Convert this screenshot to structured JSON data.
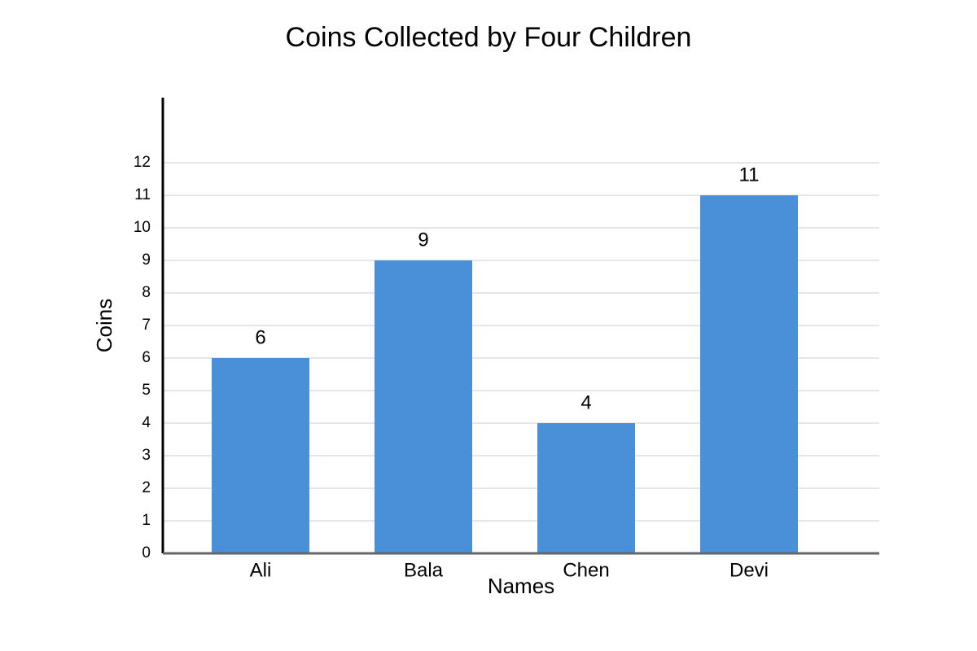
{
  "chart_data": {
    "type": "bar",
    "title": "Coins Collected by Four Children",
    "x_label": "Names",
    "y_label": "Coins",
    "categories": [
      "Ali",
      "Bala",
      "Chen",
      "Devi"
    ],
    "values": [
      6,
      9,
      4,
      11
    ],
    "color": "#4a90d9",
    "ylim": [
      0,
      14
    ],
    "yticks": [
      0,
      1,
      2,
      3,
      4,
      5,
      6,
      7,
      8,
      9,
      10,
      11,
      12
    ],
    "grid": true
  }
}
